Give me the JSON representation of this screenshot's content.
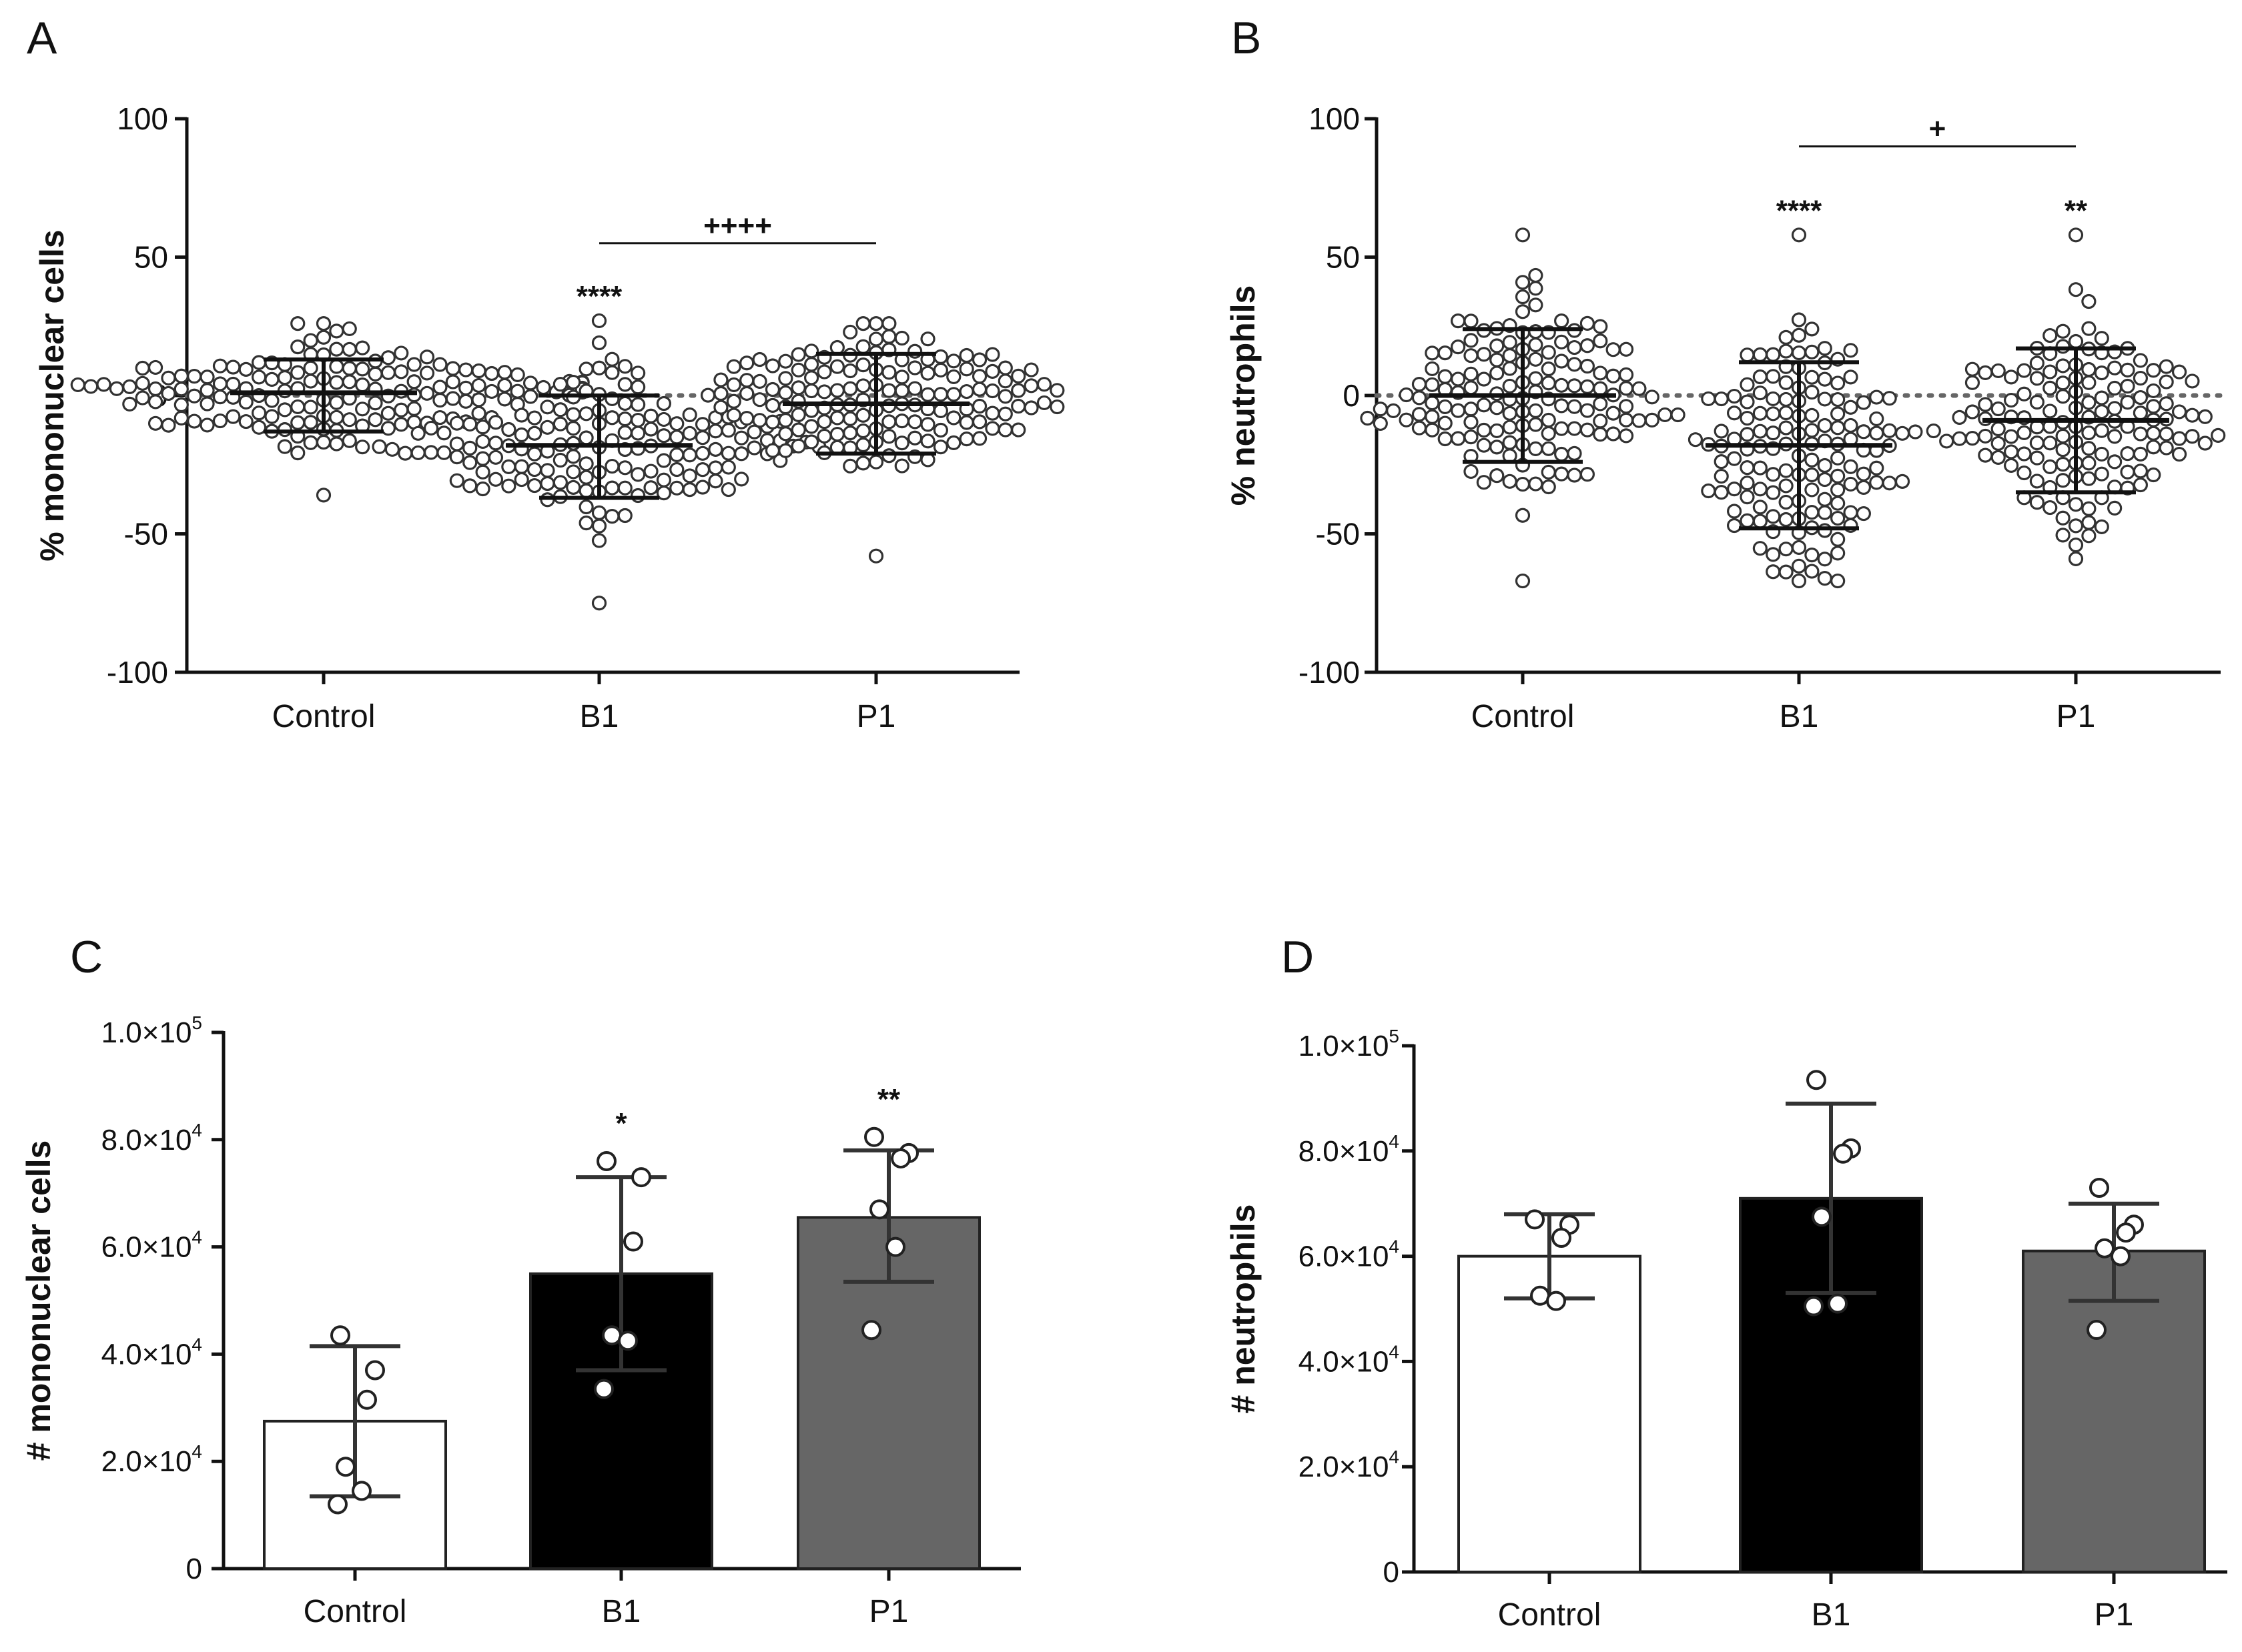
{
  "colors": {
    "axis": "#111111",
    "point_stroke": "#333333",
    "point_fill": "#ffffff",
    "bar_control": "#ffffff",
    "bar_b1": "#000000",
    "bar_p1": "#666666",
    "errorbar": "#333333",
    "zero_line": "#666666"
  },
  "chart_data": [
    {
      "panel": "A",
      "type": "scatter",
      "ylabel": "% mononuclear cells",
      "ylim": [
        -100,
        100
      ],
      "yticks": [
        "100",
        "50",
        "0",
        "-50",
        "-100"
      ],
      "ytick_values": [
        100,
        50,
        0,
        -50,
        -100
      ],
      "categories": [
        "Control",
        "B1",
        "P1"
      ],
      "zero_dotted_line": true,
      "groups": [
        {
          "name": "Control",
          "mean": 1,
          "sd_upper": 13,
          "sd_lower": -13,
          "n": 160,
          "min": -36,
          "max": 26,
          "spread": 13,
          "sig": ""
        },
        {
          "name": "B1",
          "mean": -18,
          "sd_upper": 0,
          "sd_lower": -37,
          "n": 160,
          "min": -75,
          "max": 27,
          "spread": 19,
          "sig": "****"
        },
        {
          "name": "P1",
          "mean": -3,
          "sd_upper": 15,
          "sd_lower": -21,
          "n": 160,
          "min": -58,
          "max": 26,
          "spread": 18,
          "sig": ""
        }
      ],
      "comparisons": [
        {
          "from": "B1",
          "to": "P1",
          "y": 55,
          "label": "++++"
        }
      ]
    },
    {
      "panel": "B",
      "type": "scatter",
      "ylabel": "% neutrophils",
      "ylim": [
        -100,
        100
      ],
      "yticks": [
        "100",
        "50",
        "0",
        "-50",
        "-100"
      ],
      "ytick_values": [
        100,
        50,
        0,
        -50,
        -100
      ],
      "categories": [
        "Control",
        "B1",
        "P1"
      ],
      "zero_dotted_line": true,
      "groups": [
        {
          "name": "Control",
          "mean": 0,
          "sd_upper": 24,
          "sd_lower": -24,
          "n": 150,
          "min": -67,
          "max": 58,
          "spread": 24,
          "sig": ""
        },
        {
          "name": "B1",
          "mean": -18,
          "sd_upper": 12,
          "sd_lower": -48,
          "n": 150,
          "min": -67,
          "max": 58,
          "spread": 30,
          "sig": "****"
        },
        {
          "name": "P1",
          "mean": -9,
          "sd_upper": 17,
          "sd_lower": -35,
          "n": 150,
          "min": -59,
          "max": 58,
          "spread": 26,
          "sig": "**"
        }
      ],
      "comparisons": [
        {
          "from": "B1",
          "to": "P1",
          "y": 90,
          "label": "+"
        }
      ]
    },
    {
      "panel": "C",
      "type": "bar",
      "ylabel": "# mononuclear cells",
      "ylim": [
        0,
        100000
      ],
      "ytick_values": [
        0,
        20000,
        40000,
        60000,
        80000,
        100000
      ],
      "yticks": [
        {
          "mant": "0",
          "exp": ""
        },
        {
          "mant": "2.0×10",
          "exp": "4"
        },
        {
          "mant": "4.0×10",
          "exp": "4"
        },
        {
          "mant": "6.0×10",
          "exp": "4"
        },
        {
          "mant": "8.0×10",
          "exp": "4"
        },
        {
          "mant": "1.0×10",
          "exp": "5"
        }
      ],
      "categories": [
        "Control",
        "B1",
        "P1"
      ],
      "values": [
        27500,
        55000,
        65500
      ],
      "errors_upper": [
        41500,
        73000,
        78000
      ],
      "errors_lower": [
        13500,
        37000,
        53500
      ],
      "points": [
        [
          43500,
          37000,
          31500,
          19000,
          14500,
          12000
        ],
        [
          76000,
          73000,
          61000,
          43500,
          42500,
          33500
        ],
        [
          80500,
          77500,
          76500,
          67000,
          60000,
          44500
        ]
      ],
      "sig": [
        "",
        "*",
        "**"
      ]
    },
    {
      "panel": "D",
      "type": "bar",
      "ylabel": "# neutrophils",
      "ylim": [
        0,
        100000
      ],
      "ytick_values": [
        0,
        20000,
        40000,
        60000,
        80000,
        100000
      ],
      "yticks": [
        {
          "mant": "0",
          "exp": ""
        },
        {
          "mant": "2.0×10",
          "exp": "4"
        },
        {
          "mant": "4.0×10",
          "exp": "4"
        },
        {
          "mant": "6.0×10",
          "exp": "4"
        },
        {
          "mant": "8.0×10",
          "exp": "4"
        },
        {
          "mant": "1.0×10",
          "exp": "5"
        }
      ],
      "categories": [
        "Control",
        "B1",
        "P1"
      ],
      "values": [
        60000,
        71000,
        61000
      ],
      "errors_upper": [
        68000,
        89000,
        70000
      ],
      "errors_lower": [
        52000,
        53000,
        51500
      ],
      "points": [
        [
          67000,
          66000,
          63500,
          52500,
          51500
        ],
        [
          93500,
          80500,
          79500,
          67500,
          51000,
          50500
        ],
        [
          73000,
          66000,
          64500,
          61500,
          60000,
          46000
        ]
      ],
      "sig": [
        "",
        "",
        ""
      ]
    }
  ]
}
